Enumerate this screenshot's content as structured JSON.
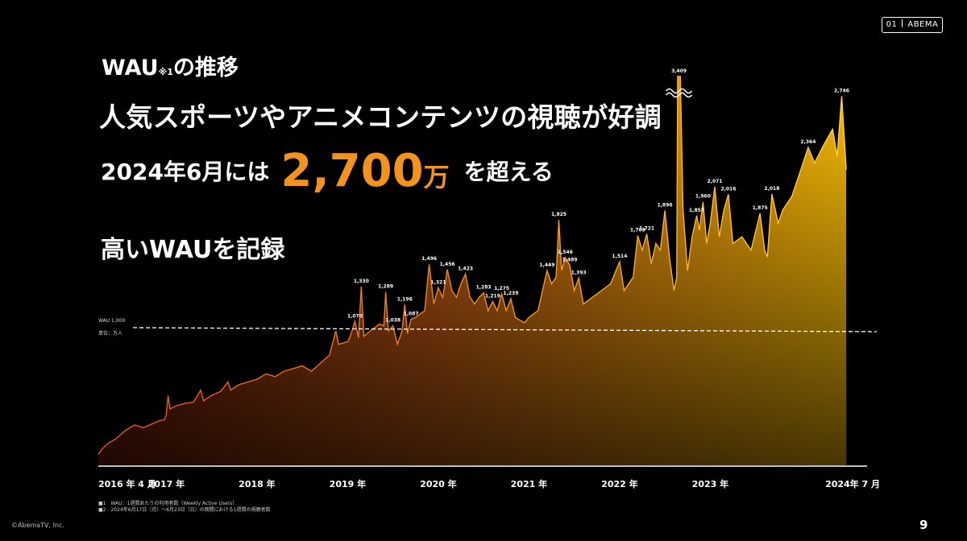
{
  "badge": {
    "num": "01",
    "label": "ABEMA"
  },
  "header": {
    "wau": "WAU",
    "wau_note": "※1",
    "wau_suffix": "の推移",
    "headline": "人気スポーツやアニメコンテンツの視聴が好調",
    "line3_pre": "2024年6月には",
    "line3_number": "2,700",
    "line3_unit": "万",
    "line3_post": "を超える",
    "record": "高いWAUを記録"
  },
  "chart_data": {
    "type": "area",
    "baseline_label": "WAU 1,000",
    "unit_label": "単位：万人",
    "baseline_value": 1000,
    "ylim": [
      0,
      3500
    ],
    "x_ticks": [
      {
        "label": "2016 年 4 月",
        "year": 2016.25
      },
      {
        "label": "2017 年",
        "year": 2017.0
      },
      {
        "label": "2018 年",
        "year": 2018.0
      },
      {
        "label": "2019 年",
        "year": 2019.0
      },
      {
        "label": "2020 年",
        "year": 2020.0
      },
      {
        "label": "2021 年",
        "year": 2021.0
      },
      {
        "label": "2022 年",
        "year": 2022.0
      },
      {
        "label": "2023 年",
        "year": 2023.0
      },
      {
        "label": "2024年 7 月",
        "year": 2024.5
      }
    ],
    "xlim": [
      2016.25,
      2024.73
    ],
    "points": [
      [
        2016.25,
        80
      ],
      [
        2016.29,
        120
      ],
      [
        2016.35,
        160
      ],
      [
        2016.45,
        200
      ],
      [
        2016.55,
        260
      ],
      [
        2016.65,
        300
      ],
      [
        2016.75,
        280
      ],
      [
        2016.85,
        310
      ],
      [
        2016.92,
        330
      ],
      [
        2016.98,
        340
      ],
      [
        2017.0,
        380
      ],
      [
        2017.02,
        520
      ],
      [
        2017.04,
        420
      ],
      [
        2017.1,
        440
      ],
      [
        2017.2,
        460
      ],
      [
        2017.3,
        470
      ],
      [
        2017.38,
        560
      ],
      [
        2017.41,
        480
      ],
      [
        2017.5,
        520
      ],
      [
        2017.6,
        550
      ],
      [
        2017.68,
        620
      ],
      [
        2017.71,
        560
      ],
      [
        2017.8,
        600
      ],
      [
        2017.9,
        620
      ],
      [
        2018.0,
        640
      ],
      [
        2018.1,
        680
      ],
      [
        2018.2,
        660
      ],
      [
        2018.3,
        700
      ],
      [
        2018.4,
        720
      ],
      [
        2018.5,
        740
      ],
      [
        2018.6,
        700
      ],
      [
        2018.7,
        760
      ],
      [
        2018.8,
        820
      ],
      [
        2018.87,
        1000
      ],
      [
        2018.9,
        900
      ],
      [
        2019.0,
        920
      ],
      [
        2019.03,
        960
      ],
      [
        2019.08,
        1070
      ],
      [
        2019.12,
        950
      ],
      [
        2019.15,
        1330
      ],
      [
        2019.18,
        960
      ],
      [
        2019.25,
        1000
      ],
      [
        2019.35,
        1050
      ],
      [
        2019.4,
        1040
      ],
      [
        2019.42,
        1289
      ],
      [
        2019.45,
        1000
      ],
      [
        2019.5,
        1038
      ],
      [
        2019.55,
        900
      ],
      [
        2019.6,
        1000
      ],
      [
        2019.63,
        1196
      ],
      [
        2019.66,
        980
      ],
      [
        2019.7,
        1087
      ],
      [
        2019.75,
        1100
      ],
      [
        2019.85,
        1150
      ],
      [
        2019.9,
        1496
      ],
      [
        2019.95,
        1200
      ],
      [
        2020.0,
        1321
      ],
      [
        2020.05,
        1250
      ],
      [
        2020.1,
        1456
      ],
      [
        2020.15,
        1300
      ],
      [
        2020.2,
        1250
      ],
      [
        2020.25,
        1350
      ],
      [
        2020.3,
        1423
      ],
      [
        2020.35,
        1250
      ],
      [
        2020.4,
        1200
      ],
      [
        2020.45,
        1250
      ],
      [
        2020.5,
        1283
      ],
      [
        2020.55,
        1150
      ],
      [
        2020.6,
        1219
      ],
      [
        2020.65,
        1150
      ],
      [
        2020.7,
        1275
      ],
      [
        2020.75,
        1150
      ],
      [
        2020.8,
        1239
      ],
      [
        2020.85,
        1100
      ],
      [
        2020.9,
        1080
      ],
      [
        2020.95,
        1060
      ],
      [
        2021.0,
        1100
      ],
      [
        2021.1,
        1150
      ],
      [
        2021.2,
        1449
      ],
      [
        2021.25,
        1350
      ],
      [
        2021.3,
        1400
      ],
      [
        2021.33,
        1825
      ],
      [
        2021.36,
        1450
      ],
      [
        2021.4,
        1546
      ],
      [
        2021.45,
        1489
      ],
      [
        2021.5,
        1300
      ],
      [
        2021.55,
        1393
      ],
      [
        2021.6,
        1200
      ],
      [
        2021.7,
        1250
      ],
      [
        2021.8,
        1300
      ],
      [
        2021.9,
        1350
      ],
      [
        2022.0,
        1514
      ],
      [
        2022.05,
        1300
      ],
      [
        2022.15,
        1400
      ],
      [
        2022.2,
        1709
      ],
      [
        2022.25,
        1600
      ],
      [
        2022.3,
        1721
      ],
      [
        2022.35,
        1500
      ],
      [
        2022.4,
        1650
      ],
      [
        2022.45,
        1600
      ],
      [
        2022.5,
        1896
      ],
      [
        2022.55,
        1550
      ],
      [
        2022.6,
        1300
      ],
      [
        2022.63,
        1400
      ],
      [
        2022.64,
        3409
      ],
      [
        2022.67,
        3409
      ],
      [
        2022.7,
        1900
      ],
      [
        2022.75,
        1450
      ],
      [
        2022.8,
        1700
      ],
      [
        2022.85,
        1857
      ],
      [
        2022.88,
        1750
      ],
      [
        2022.92,
        1960
      ],
      [
        2022.96,
        1650
      ],
      [
        2023.0,
        1800
      ],
      [
        2023.05,
        2071
      ],
      [
        2023.1,
        1700
      ],
      [
        2023.15,
        1900
      ],
      [
        2023.2,
        2016
      ],
      [
        2023.25,
        1650
      ],
      [
        2023.35,
        1700
      ],
      [
        2023.45,
        1600
      ],
      [
        2023.55,
        1875
      ],
      [
        2023.6,
        1600
      ],
      [
        2023.63,
        1550
      ],
      [
        2023.68,
        2018
      ],
      [
        2023.75,
        1800
      ],
      [
        2023.8,
        1900
      ],
      [
        2023.9,
        2000
      ],
      [
        2024.0,
        2200
      ],
      [
        2024.08,
        2364
      ],
      [
        2024.15,
        2250
      ],
      [
        2024.25,
        2380
      ],
      [
        2024.35,
        2500
      ],
      [
        2024.4,
        2300
      ],
      [
        2024.45,
        2746
      ],
      [
        2024.5,
        2200
      ]
    ],
    "labels": [
      {
        "text": "1,070",
        "x": 2019.08,
        "y": 1070
      },
      {
        "text": "1,330",
        "x": 2019.15,
        "y": 1330
      },
      {
        "text": "1,289",
        "x": 2019.42,
        "y": 1289
      },
      {
        "text": "1,038",
        "x": 2019.5,
        "y": 1038
      },
      {
        "text": "1,196",
        "x": 2019.63,
        "y": 1196
      },
      {
        "text": "1,087",
        "x": 2019.7,
        "y": 1087
      },
      {
        "text": "1,496",
        "x": 2019.9,
        "y": 1496
      },
      {
        "text": "1,321",
        "x": 2020.0,
        "y": 1321
      },
      {
        "text": "1,456",
        "x": 2020.1,
        "y": 1456
      },
      {
        "text": "1,423",
        "x": 2020.3,
        "y": 1423
      },
      {
        "text": "1,283",
        "x": 2020.5,
        "y": 1283
      },
      {
        "text": "1,219",
        "x": 2020.6,
        "y": 1219
      },
      {
        "text": "1,275",
        "x": 2020.7,
        "y": 1275
      },
      {
        "text": "1,239",
        "x": 2020.8,
        "y": 1239
      },
      {
        "text": "1,449",
        "x": 2021.2,
        "y": 1449
      },
      {
        "text": "1,825",
        "x": 2021.33,
        "y": 1825
      },
      {
        "text": "1,546",
        "x": 2021.4,
        "y": 1546
      },
      {
        "text": "1,489",
        "x": 2021.45,
        "y": 1489
      },
      {
        "text": "1,393",
        "x": 2021.55,
        "y": 1393
      },
      {
        "text": "1,514",
        "x": 2022.0,
        "y": 1514
      },
      {
        "text": "1,709",
        "x": 2022.2,
        "y": 1709
      },
      {
        "text": "1,721",
        "x": 2022.3,
        "y": 1721
      },
      {
        "text": "1,896",
        "x": 2022.5,
        "y": 1896
      },
      {
        "text": "3,409",
        "x": 2022.655,
        "y": 3409
      },
      {
        "text": "1,857",
        "x": 2022.85,
        "y": 1857
      },
      {
        "text": "1,960",
        "x": 2022.92,
        "y": 1960
      },
      {
        "text": "2,071",
        "x": 2023.05,
        "y": 2071
      },
      {
        "text": "2,016",
        "x": 2023.2,
        "y": 2016
      },
      {
        "text": "1,875",
        "x": 2023.55,
        "y": 1875
      },
      {
        "text": "2,018",
        "x": 2023.68,
        "y": 2018
      },
      {
        "text": "2,364",
        "x": 2024.08,
        "y": 2364
      },
      {
        "text": "2,746",
        "x": 2024.45,
        "y": 2746
      }
    ],
    "axis_break_at": 3409
  },
  "footnotes": {
    "n1": "■1　WAU：1週間あたりの利用者数（Weekly Active Users）",
    "n2": "■2　2024年6月17日（月）～6月23日（日）の期間における1週間の視聴者数"
  },
  "copyright": "©AbemaTV, Inc.",
  "page_number": "9"
}
